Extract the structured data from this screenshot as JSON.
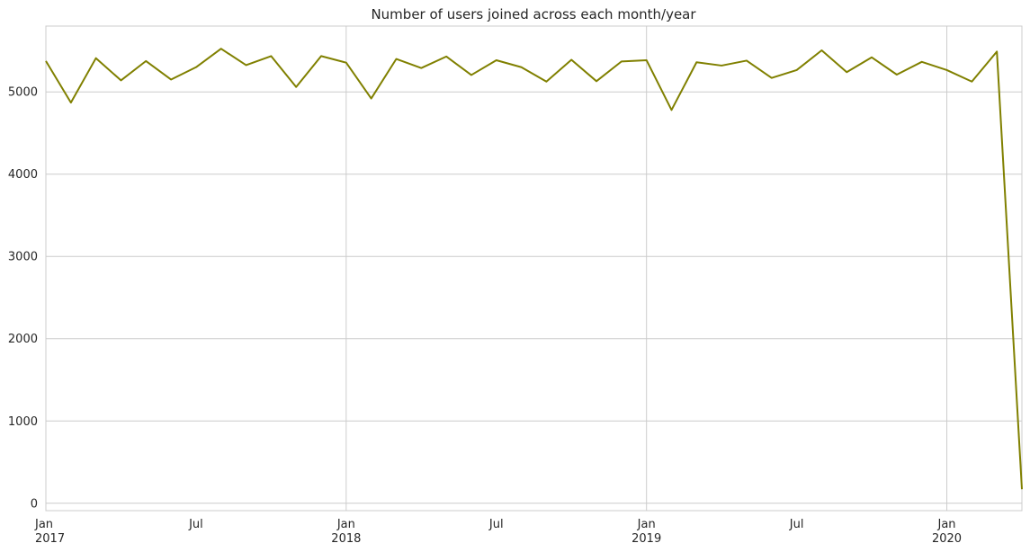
{
  "chart_data": {
    "type": "line",
    "title": "Number of users joined across each month/year",
    "xlabel": "",
    "ylabel": "",
    "grid": true,
    "line_color": "#808000",
    "x": [
      "2017-01",
      "2017-02",
      "2017-03",
      "2017-04",
      "2017-05",
      "2017-06",
      "2017-07",
      "2017-08",
      "2017-09",
      "2017-10",
      "2017-11",
      "2017-12",
      "2018-01",
      "2018-02",
      "2018-03",
      "2018-04",
      "2018-05",
      "2018-06",
      "2018-07",
      "2018-08",
      "2018-09",
      "2018-10",
      "2018-11",
      "2018-12",
      "2019-01",
      "2019-02",
      "2019-03",
      "2019-04",
      "2019-05",
      "2019-06",
      "2019-07",
      "2019-08",
      "2019-09",
      "2019-10",
      "2019-11",
      "2019-12",
      "2020-01",
      "2020-02",
      "2020-03",
      "2020-04"
    ],
    "series": [
      {
        "values": [
          5375,
          4870,
          5410,
          5140,
          5375,
          5150,
          5300,
          5525,
          5325,
          5435,
          5060,
          5435,
          5355,
          4920,
          5400,
          5290,
          5430,
          5205,
          5385,
          5300,
          5125,
          5390,
          5130,
          5370,
          5385,
          4780,
          5360,
          5320,
          5380,
          5170,
          5265,
          5505,
          5240,
          5420,
          5210,
          5365,
          5265,
          5125,
          5490,
          170
        ]
      }
    ],
    "ylim": [
      -90,
      5800
    ],
    "yticks": [
      0,
      1000,
      2000,
      3000,
      4000,
      5000
    ],
    "xticks": [
      {
        "month": "Jan",
        "year": "2017",
        "at": "2017-01"
      },
      {
        "month": "Jul",
        "year": "",
        "at": "2017-07"
      },
      {
        "month": "Jan",
        "year": "2018",
        "at": "2018-01"
      },
      {
        "month": "Jul",
        "year": "",
        "at": "2018-07"
      },
      {
        "month": "Jan",
        "year": "2019",
        "at": "2019-01"
      },
      {
        "month": "Jul",
        "year": "",
        "at": "2019-07"
      },
      {
        "month": "Jan",
        "year": "2020",
        "at": "2020-01"
      }
    ],
    "x_gridlines_at": [
      "2018-01",
      "2019-01",
      "2020-01"
    ]
  }
}
